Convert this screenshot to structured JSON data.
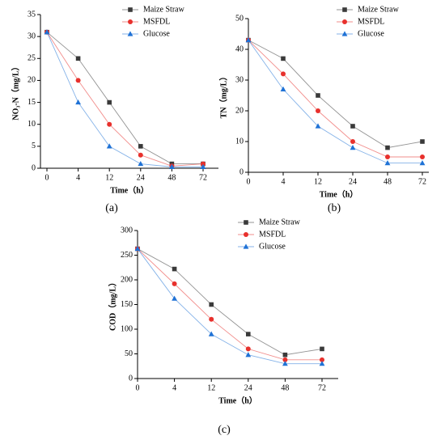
{
  "chart_data": [
    {
      "type": "line",
      "panel_label": "(a)",
      "x_label": "Time（h）",
      "y_label": "NO₃-N（mg/L）",
      "categories": [
        "0",
        "4",
        "12",
        "24",
        "48",
        "72"
      ],
      "ylim": [
        0,
        35
      ],
      "yticks": [
        0,
        5,
        10,
        15,
        20,
        25,
        30,
        35
      ],
      "series": [
        {
          "name": "Maize Straw",
          "color": "#3a3a3a",
          "marker": "square",
          "values": [
            31,
            25,
            15,
            5,
            1,
            1
          ]
        },
        {
          "name": "MSFDL",
          "color": "#e8302c",
          "marker": "circle",
          "values": [
            31,
            20,
            10,
            3,
            0.5,
            1
          ]
        },
        {
          "name": "Glucose",
          "color": "#1f72d6",
          "marker": "triangle",
          "values": [
            31,
            15,
            5,
            1,
            0.3,
            0.3
          ]
        }
      ]
    },
    {
      "type": "line",
      "panel_label": "(b)",
      "x_label": "Time（h）",
      "y_label": "TN（mg/L）",
      "categories": [
        "0",
        "4",
        "12",
        "24",
        "48",
        "72"
      ],
      "ylim": [
        0,
        50
      ],
      "yticks": [
        0,
        10,
        20,
        30,
        40,
        50
      ],
      "series": [
        {
          "name": "Maize Straw",
          "color": "#3a3a3a",
          "marker": "square",
          "values": [
            43,
            37,
            25,
            15,
            8,
            10
          ]
        },
        {
          "name": "MSFDL",
          "color": "#e8302c",
          "marker": "circle",
          "values": [
            43,
            32,
            20,
            10,
            5,
            5
          ]
        },
        {
          "name": "Glucose",
          "color": "#1f72d6",
          "marker": "triangle",
          "values": [
            43,
            27,
            15,
            8,
            3,
            3
          ]
        }
      ]
    },
    {
      "type": "line",
      "panel_label": "(c)",
      "x_label": "Time（h）",
      "y_label": "COD（mg/L）",
      "categories": [
        "0",
        "4",
        "12",
        "24",
        "48",
        "72"
      ],
      "ylim": [
        0,
        300
      ],
      "yticks": [
        0,
        50,
        100,
        150,
        200,
        250,
        300
      ],
      "series": [
        {
          "name": "Maize Straw",
          "color": "#3a3a3a",
          "marker": "square",
          "values": [
            263,
            222,
            150,
            90,
            48,
            60
          ]
        },
        {
          "name": "MSFDL",
          "color": "#e8302c",
          "marker": "circle",
          "values": [
            263,
            192,
            120,
            60,
            38,
            38
          ]
        },
        {
          "name": "Glucose",
          "color": "#1f72d6",
          "marker": "triangle",
          "values": [
            263,
            162,
            90,
            48,
            30,
            30
          ]
        }
      ]
    }
  ]
}
